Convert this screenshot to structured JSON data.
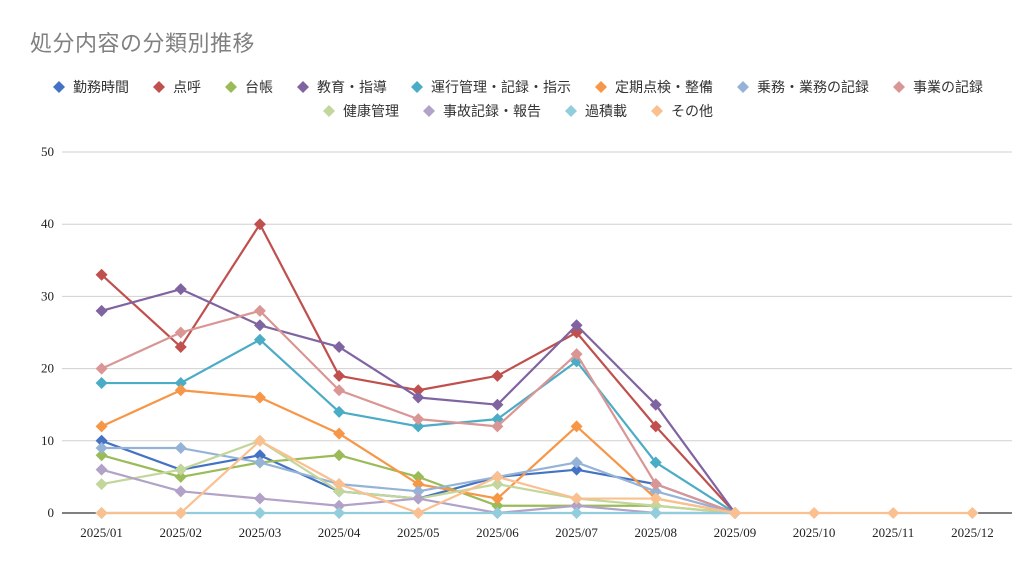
{
  "chart_data": {
    "type": "line",
    "title": "処分内容の分類別推移",
    "xlabel": "",
    "ylabel": "",
    "ylim": [
      0,
      50
    ],
    "yticks": [
      0,
      10,
      20,
      30,
      40,
      50
    ],
    "grid": true,
    "legend_position": "top",
    "marker": "diamond",
    "categories": [
      "2025/01",
      "2025/02",
      "2025/03",
      "2025/04",
      "2025/05",
      "2025/06",
      "2025/07",
      "2025/08",
      "2025/09",
      "2025/10",
      "2025/11",
      "2025/12"
    ],
    "series": [
      {
        "name": "勤務時間",
        "color": "#4472C4",
        "values": [
          10,
          6,
          8,
          3,
          2,
          5,
          6,
          4,
          0,
          null,
          null,
          null
        ]
      },
      {
        "name": "点呼",
        "color": "#C0504D",
        "values": [
          33,
          23,
          40,
          19,
          17,
          19,
          25,
          12,
          0,
          null,
          null,
          null
        ]
      },
      {
        "name": "台帳",
        "color": "#9BBB59",
        "values": [
          8,
          5,
          7,
          8,
          5,
          1,
          1,
          1,
          0,
          null,
          null,
          null
        ]
      },
      {
        "name": "教育・指導",
        "color": "#8064A2",
        "values": [
          28,
          31,
          26,
          23,
          16,
          15,
          26,
          15,
          0,
          null,
          null,
          null
        ]
      },
      {
        "name": "運行管理・記録・指示",
        "color": "#4BACC6",
        "values": [
          18,
          18,
          24,
          14,
          12,
          13,
          21,
          7,
          0,
          null,
          null,
          null
        ]
      },
      {
        "name": "定期点検・整備",
        "color": "#F79646",
        "values": [
          12,
          17,
          16,
          11,
          4,
          2,
          12,
          2,
          0,
          null,
          null,
          null
        ]
      },
      {
        "name": "乗務・業務の記録",
        "color": "#95B3D7",
        "values": [
          9,
          9,
          7,
          4,
          3,
          5,
          7,
          3,
          0,
          null,
          null,
          null
        ]
      },
      {
        "name": "事業の記録",
        "color": "#D99694",
        "values": [
          20,
          25,
          28,
          17,
          13,
          12,
          22,
          4,
          0,
          null,
          null,
          null
        ]
      },
      {
        "name": "健康管理",
        "color": "#C3D69B",
        "values": [
          4,
          6,
          10,
          3,
          2,
          4,
          2,
          1,
          0,
          null,
          null,
          null
        ]
      },
      {
        "name": "事故記録・報告",
        "color": "#B2A2C7",
        "values": [
          6,
          3,
          2,
          1,
          2,
          0,
          1,
          0,
          0,
          null,
          null,
          null
        ]
      },
      {
        "name": "過積載",
        "color": "#92CDDC",
        "values": [
          0,
          0,
          0,
          0,
          0,
          0,
          0,
          0,
          0,
          null,
          null,
          null
        ]
      },
      {
        "name": "その他",
        "color": "#FAC090",
        "values": [
          0,
          0,
          10,
          4,
          0,
          5,
          2,
          2,
          0,
          0,
          0,
          0
        ]
      }
    ]
  }
}
